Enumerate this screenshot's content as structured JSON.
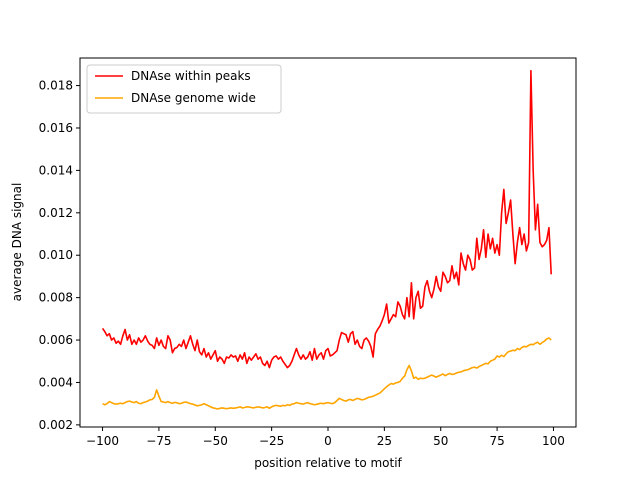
{
  "chart_data": {
    "type": "line",
    "title": "",
    "xlabel": "position relative to motif",
    "ylabel": "average DNA signal",
    "xlim": [
      -110,
      110
    ],
    "ylim": [
      0.0019,
      0.0193
    ],
    "xticks": [
      -100,
      -75,
      -50,
      -25,
      0,
      25,
      50,
      75,
      100
    ],
    "xtick_labels": [
      "−100",
      "−75",
      "−50",
      "−25",
      "0",
      "25",
      "50",
      "75",
      "100"
    ],
    "yticks": [
      0.002,
      0.004,
      0.006,
      0.008,
      0.01,
      0.012,
      0.014,
      0.016,
      0.018
    ],
    "ytick_labels": [
      "0.002",
      "0.004",
      "0.006",
      "0.008",
      "0.010",
      "0.012",
      "0.014",
      "0.016",
      "0.018"
    ],
    "grid": false,
    "legend_position": "top-left",
    "series": [
      {
        "name": "DNAse within peaks",
        "color": "#ff0000",
        "x_start": -100,
        "x_step": 1,
        "values": [
          0.00655,
          0.0064,
          0.0062,
          0.0063,
          0.006,
          0.0061,
          0.00585,
          0.00595,
          0.0058,
          0.0062,
          0.0065,
          0.006,
          0.00625,
          0.0058,
          0.006,
          0.0058,
          0.0061,
          0.0059,
          0.006,
          0.0062,
          0.00595,
          0.0058,
          0.00575,
          0.0056,
          0.0061,
          0.00575,
          0.006,
          0.0057,
          0.0056,
          0.0062,
          0.006,
          0.0054,
          0.0056,
          0.00565,
          0.0058,
          0.0057,
          0.006,
          0.0056,
          0.0059,
          0.0062,
          0.0058,
          0.0055,
          0.006,
          0.00545,
          0.0053,
          0.0056,
          0.0052,
          0.0054,
          0.0051,
          0.0053,
          0.0055,
          0.005,
          0.0052,
          0.0051,
          0.0049,
          0.0052,
          0.00515,
          0.0053,
          0.0052,
          0.00525,
          0.005,
          0.0053,
          0.0051,
          0.0054,
          0.0049,
          0.0052,
          0.00505,
          0.0052,
          0.00535,
          0.0051,
          0.0052,
          0.0049,
          0.0048,
          0.005,
          0.0047,
          0.00505,
          0.0052,
          0.00525,
          0.0051,
          0.0052,
          0.005,
          0.00485,
          0.0047,
          0.0048,
          0.005,
          0.0053,
          0.0056,
          0.0053,
          0.0051,
          0.0053,
          0.0051,
          0.0052,
          0.00545,
          0.00505,
          0.0056,
          0.0051,
          0.0053,
          0.0054,
          0.0051,
          0.0055,
          0.0056,
          0.00525,
          0.0053,
          0.0054,
          0.0055,
          0.006,
          0.00635,
          0.0063,
          0.00625,
          0.0059,
          0.0063,
          0.0064,
          0.0058,
          0.006,
          0.0057,
          0.0056,
          0.006,
          0.0061,
          0.00595,
          0.0057,
          0.0052,
          0.0063,
          0.0065,
          0.00665,
          0.0069,
          0.0072,
          0.0077,
          0.0068,
          0.007,
          0.0072,
          0.0071,
          0.0078,
          0.0076,
          0.0072,
          0.007,
          0.008,
          0.0071,
          0.0087,
          0.007,
          0.008,
          0.0083,
          0.0075,
          0.0076,
          0.0085,
          0.0088,
          0.0083,
          0.008,
          0.0084,
          0.009,
          0.0085,
          0.0083,
          0.0092,
          0.009,
          0.0087,
          0.0088,
          0.0095,
          0.0089,
          0.0092,
          0.0086,
          0.0101,
          0.0096,
          0.0093,
          0.01,
          0.0098,
          0.0093,
          0.0094,
          0.0108,
          0.0098,
          0.0103,
          0.0112,
          0.0099,
          0.011,
          0.0103,
          0.0108,
          0.0101,
          0.0105,
          0.01,
          0.012,
          0.0131,
          0.0115,
          0.012,
          0.0126,
          0.011,
          0.0096,
          0.0106,
          0.0113,
          0.0105,
          0.011,
          0.0102,
          0.0106,
          0.0187,
          0.014,
          0.0112,
          0.0124,
          0.0106,
          0.0104,
          0.0105,
          0.0107,
          0.0113,
          0.0091
        ]
      },
      {
        "name": "DNAse genome wide",
        "color": "#ffa500",
        "x_start": -100,
        "x_step": 1,
        "values": [
          0.003,
          0.00295,
          0.003,
          0.0031,
          0.00305,
          0.003,
          0.00298,
          0.003,
          0.00302,
          0.003,
          0.00305,
          0.0031,
          0.00312,
          0.00308,
          0.00305,
          0.0031,
          0.00302,
          0.003,
          0.00305,
          0.00308,
          0.00312,
          0.00318,
          0.0032,
          0.0033,
          0.00365,
          0.00335,
          0.0031,
          0.00308,
          0.00305,
          0.0031,
          0.00305,
          0.00302,
          0.00306,
          0.00304,
          0.003,
          0.00302,
          0.00306,
          0.00308,
          0.00304,
          0.003,
          0.00298,
          0.00294,
          0.0029,
          0.00292,
          0.00295,
          0.003,
          0.00295,
          0.0029,
          0.00285,
          0.0028,
          0.00278,
          0.00275,
          0.00278,
          0.0028,
          0.00278,
          0.00276,
          0.00278,
          0.0028,
          0.00278,
          0.0028,
          0.00282,
          0.00285,
          0.0028,
          0.00282,
          0.00285,
          0.00284,
          0.00282,
          0.0028,
          0.00283,
          0.00285,
          0.00283,
          0.0028,
          0.00282,
          0.00285,
          0.00278,
          0.00285,
          0.0029,
          0.00292,
          0.0029,
          0.00288,
          0.00292,
          0.0029,
          0.00295,
          0.00292,
          0.00298,
          0.003,
          0.00305,
          0.00302,
          0.003,
          0.00298,
          0.00302,
          0.00305,
          0.003,
          0.00298,
          0.00295,
          0.00297,
          0.003,
          0.00302,
          0.003,
          0.00303,
          0.00305,
          0.00302,
          0.003,
          0.00305,
          0.00315,
          0.00325,
          0.0032,
          0.00315,
          0.00312,
          0.00318,
          0.0032,
          0.00315,
          0.0032,
          0.00325,
          0.00322,
          0.00318,
          0.0032,
          0.00325,
          0.0033,
          0.00332,
          0.00335,
          0.0034,
          0.00345,
          0.0035,
          0.0036,
          0.0037,
          0.0038,
          0.00388,
          0.00395,
          0.00392,
          0.00398,
          0.004,
          0.00405,
          0.0042,
          0.0043,
          0.0046,
          0.0048,
          0.00455,
          0.0042,
          0.00425,
          0.00415,
          0.0042,
          0.00418,
          0.0042,
          0.00425,
          0.0043,
          0.00435,
          0.0043,
          0.00425,
          0.0043,
          0.00435,
          0.0044,
          0.00432,
          0.00438,
          0.00442,
          0.00438,
          0.0044,
          0.00445,
          0.00448,
          0.0045,
          0.00455,
          0.00458,
          0.0046,
          0.00465,
          0.0047,
          0.00472,
          0.00468,
          0.00475,
          0.0048,
          0.00485,
          0.0049,
          0.00488,
          0.005,
          0.00505,
          0.0051,
          0.00525,
          0.0052,
          0.00528,
          0.00522,
          0.00535,
          0.00545,
          0.00548,
          0.00552,
          0.0055,
          0.0056,
          0.00555,
          0.00565,
          0.0057,
          0.00568,
          0.00575,
          0.0058,
          0.00578,
          0.00585,
          0.0059,
          0.0058,
          0.00588,
          0.00595,
          0.00605,
          0.0061,
          0.006
        ]
      }
    ]
  }
}
